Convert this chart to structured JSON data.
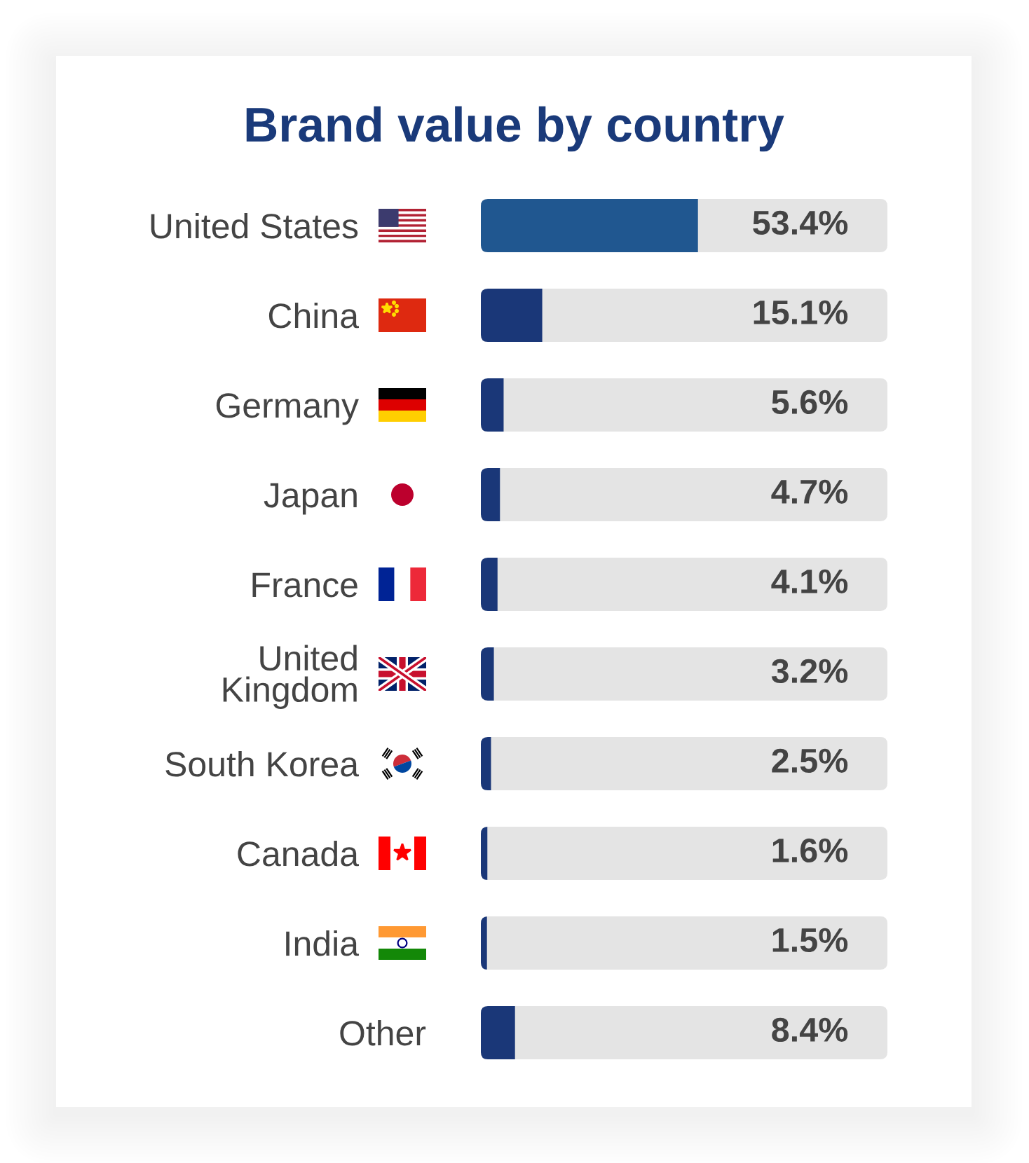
{
  "chart_data": {
    "type": "bar",
    "orientation": "horizontal",
    "title": "Brand value by country",
    "categories": [
      "United States",
      "China",
      "Germany",
      "Japan",
      "France",
      "United Kingdom",
      "South Korea",
      "Canada",
      "India",
      "Other"
    ],
    "values": [
      53.4,
      15.1,
      5.6,
      4.7,
      4.1,
      3.2,
      2.5,
      1.6,
      1.5,
      8.4
    ],
    "colors": [
      "#205790",
      "#1a3778",
      "#1a3778",
      "#1a3778",
      "#1a3778",
      "#1a3778",
      "#1a3778",
      "#1a3778",
      "#1a3778",
      "#1a3778"
    ],
    "value_labels": [
      "53.4%",
      "15.1%",
      "5.6%",
      "4.7%",
      "4.1%",
      "3.2%",
      "2.5%",
      "1.6%",
      "1.5%",
      "8.4%"
    ],
    "xlim": [
      0,
      100
    ],
    "tick_labels": "y"
  }
}
